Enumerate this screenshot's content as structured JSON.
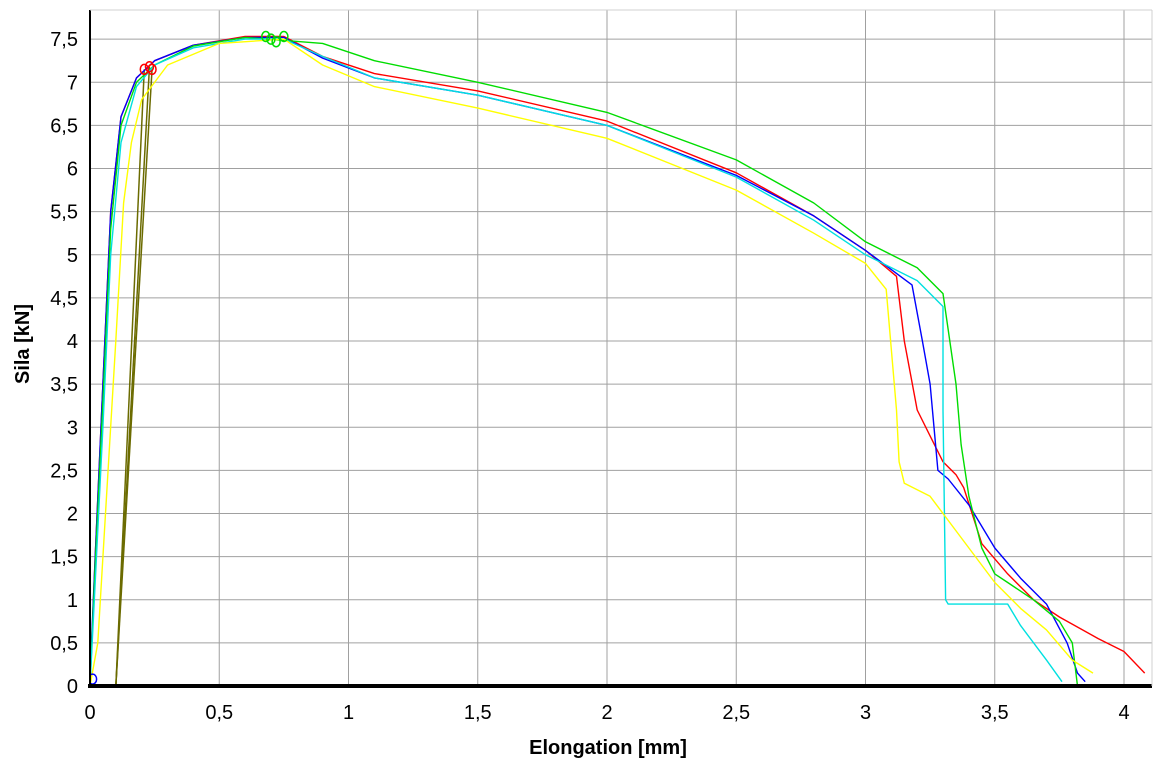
{
  "chart_data": {
    "type": "line",
    "xlabel": "Elongation [mm]",
    "ylabel": "Sila [kN]",
    "xlim": [
      0,
      4.2
    ],
    "ylim": [
      0,
      7.75
    ],
    "x_ticks": [
      0,
      0.5,
      1,
      1.5,
      2,
      2.5,
      3,
      3.5,
      4
    ],
    "x_tick_labels": [
      "0",
      "0,5",
      "1",
      "1,5",
      "2",
      "2,5",
      "3",
      "3,5",
      "4"
    ],
    "y_ticks": [
      0,
      0.5,
      1,
      1.5,
      2,
      2.5,
      3,
      3.5,
      4,
      4.5,
      5,
      5.5,
      6,
      6.5,
      7,
      7.5
    ],
    "y_tick_labels": [
      "0",
      "0,5",
      "1",
      "1,5",
      "2",
      "2,5",
      "3",
      "3,5",
      "4",
      "4,5",
      "5",
      "5,5",
      "6",
      "6,5",
      "7",
      "7,5"
    ],
    "grid": true,
    "legend": false,
    "series": [
      {
        "color": "#ff0000",
        "points": [
          [
            0,
            0
          ],
          [
            0.02,
            1.5
          ],
          [
            0.05,
            3.5
          ],
          [
            0.08,
            5.5
          ],
          [
            0.12,
            6.6
          ],
          [
            0.18,
            7.05
          ],
          [
            0.25,
            7.25
          ],
          [
            0.4,
            7.43
          ],
          [
            0.6,
            7.53
          ],
          [
            0.75,
            7.53
          ],
          [
            0.9,
            7.3
          ],
          [
            1.1,
            7.1
          ],
          [
            1.5,
            6.9
          ],
          [
            2,
            6.55
          ],
          [
            2.5,
            5.95
          ],
          [
            2.8,
            5.45
          ],
          [
            3.0,
            5.05
          ],
          [
            3.12,
            4.75
          ],
          [
            3.15,
            4.0
          ],
          [
            3.2,
            3.2
          ],
          [
            3.25,
            2.9
          ],
          [
            3.3,
            2.6
          ],
          [
            3.35,
            2.45
          ],
          [
            3.38,
            2.3
          ],
          [
            3.45,
            1.65
          ],
          [
            3.55,
            1.3
          ],
          [
            3.65,
            1.0
          ],
          [
            3.75,
            0.8
          ],
          [
            3.9,
            0.55
          ],
          [
            4.0,
            0.4
          ],
          [
            4.08,
            0.15
          ]
        ],
        "markers": [
          [
            0.21,
            7.15
          ],
          [
            0.23,
            7.18
          ],
          [
            0.24,
            7.15
          ]
        ]
      },
      {
        "color": "#0000ff",
        "points": [
          [
            0,
            0.1
          ],
          [
            0.02,
            1.5
          ],
          [
            0.05,
            3.5
          ],
          [
            0.08,
            5.5
          ],
          [
            0.12,
            6.6
          ],
          [
            0.18,
            7.05
          ],
          [
            0.25,
            7.25
          ],
          [
            0.4,
            7.43
          ],
          [
            0.6,
            7.52
          ],
          [
            0.75,
            7.52
          ],
          [
            0.9,
            7.28
          ],
          [
            1.1,
            7.05
          ],
          [
            1.5,
            6.85
          ],
          [
            2,
            6.5
          ],
          [
            2.5,
            5.92
          ],
          [
            2.8,
            5.45
          ],
          [
            3.0,
            5.05
          ],
          [
            3.18,
            4.65
          ],
          [
            3.22,
            4.0
          ],
          [
            3.25,
            3.5
          ],
          [
            3.28,
            2.5
          ],
          [
            3.32,
            2.4
          ],
          [
            3.4,
            2.1
          ],
          [
            3.5,
            1.6
          ],
          [
            3.6,
            1.25
          ],
          [
            3.7,
            0.95
          ],
          [
            3.78,
            0.5
          ],
          [
            3.82,
            0.15
          ],
          [
            3.85,
            0.05
          ]
        ],
        "markers": [
          [
            0.01,
            0.08
          ]
        ]
      },
      {
        "color": "#00dd00",
        "points": [
          [
            0,
            0
          ],
          [
            0.02,
            1.4
          ],
          [
            0.05,
            3.3
          ],
          [
            0.08,
            5.3
          ],
          [
            0.12,
            6.5
          ],
          [
            0.18,
            7.0
          ],
          [
            0.25,
            7.2
          ],
          [
            0.4,
            7.42
          ],
          [
            0.6,
            7.52
          ],
          [
            0.9,
            7.45
          ],
          [
            1.1,
            7.25
          ],
          [
            1.5,
            7.0
          ],
          [
            2,
            6.65
          ],
          [
            2.5,
            6.1
          ],
          [
            2.8,
            5.6
          ],
          [
            3.0,
            5.15
          ],
          [
            3.2,
            4.85
          ],
          [
            3.3,
            4.55
          ],
          [
            3.35,
            3.5
          ],
          [
            3.37,
            2.8
          ],
          [
            3.4,
            2.2
          ],
          [
            3.45,
            1.6
          ],
          [
            3.5,
            1.3
          ],
          [
            3.55,
            1.2
          ],
          [
            3.65,
            1.0
          ],
          [
            3.75,
            0.75
          ],
          [
            3.8,
            0.5
          ],
          [
            3.82,
            0.0
          ]
        ],
        "markers": [
          [
            0.68,
            7.53
          ],
          [
            0.7,
            7.5
          ],
          [
            0.72,
            7.47
          ],
          [
            0.75,
            7.53
          ]
        ]
      },
      {
        "color": "#00e0e0",
        "points": [
          [
            0,
            0
          ],
          [
            0.02,
            1.2
          ],
          [
            0.05,
            3.0
          ],
          [
            0.08,
            5.0
          ],
          [
            0.12,
            6.3
          ],
          [
            0.18,
            6.95
          ],
          [
            0.25,
            7.2
          ],
          [
            0.4,
            7.4
          ],
          [
            0.6,
            7.5
          ],
          [
            0.75,
            7.5
          ],
          [
            0.9,
            7.3
          ],
          [
            1.1,
            7.05
          ],
          [
            1.5,
            6.85
          ],
          [
            2,
            6.5
          ],
          [
            2.5,
            5.9
          ],
          [
            2.8,
            5.4
          ],
          [
            3.0,
            5.0
          ],
          [
            3.2,
            4.7
          ],
          [
            3.3,
            4.4
          ],
          [
            3.3,
            3.2
          ],
          [
            3.31,
            1.0
          ],
          [
            3.32,
            0.95
          ],
          [
            3.55,
            0.95
          ],
          [
            3.6,
            0.7
          ],
          [
            3.7,
            0.3
          ],
          [
            3.76,
            0.05
          ]
        ],
        "markers": []
      },
      {
        "color": "#ffff00",
        "points": [
          [
            0,
            0
          ],
          [
            0.03,
            0.5
          ],
          [
            0.06,
            2.0
          ],
          [
            0.1,
            4.0
          ],
          [
            0.13,
            5.6
          ],
          [
            0.16,
            6.3
          ],
          [
            0.2,
            6.8
          ],
          [
            0.3,
            7.2
          ],
          [
            0.5,
            7.45
          ],
          [
            0.75,
            7.5
          ],
          [
            0.9,
            7.2
          ],
          [
            1.1,
            6.95
          ],
          [
            1.5,
            6.7
          ],
          [
            2,
            6.35
          ],
          [
            2.5,
            5.75
          ],
          [
            2.8,
            5.25
          ],
          [
            3.0,
            4.9
          ],
          [
            3.08,
            4.6
          ],
          [
            3.12,
            3.2
          ],
          [
            3.13,
            2.6
          ],
          [
            3.15,
            2.35
          ],
          [
            3.25,
            2.2
          ],
          [
            3.4,
            1.6
          ],
          [
            3.5,
            1.2
          ],
          [
            3.6,
            0.9
          ],
          [
            3.7,
            0.65
          ],
          [
            3.8,
            0.3
          ],
          [
            3.88,
            0.15
          ]
        ],
        "markers": []
      }
    ],
    "unloading_lines": {
      "color": "#6b6b00",
      "segments": [
        [
          [
            0.1,
            0.0
          ],
          [
            0.21,
            7.15
          ]
        ],
        [
          [
            0.1,
            0.0
          ],
          [
            0.23,
            7.18
          ]
        ],
        [
          [
            0.1,
            0.0
          ],
          [
            0.24,
            7.15
          ]
        ]
      ]
    }
  }
}
